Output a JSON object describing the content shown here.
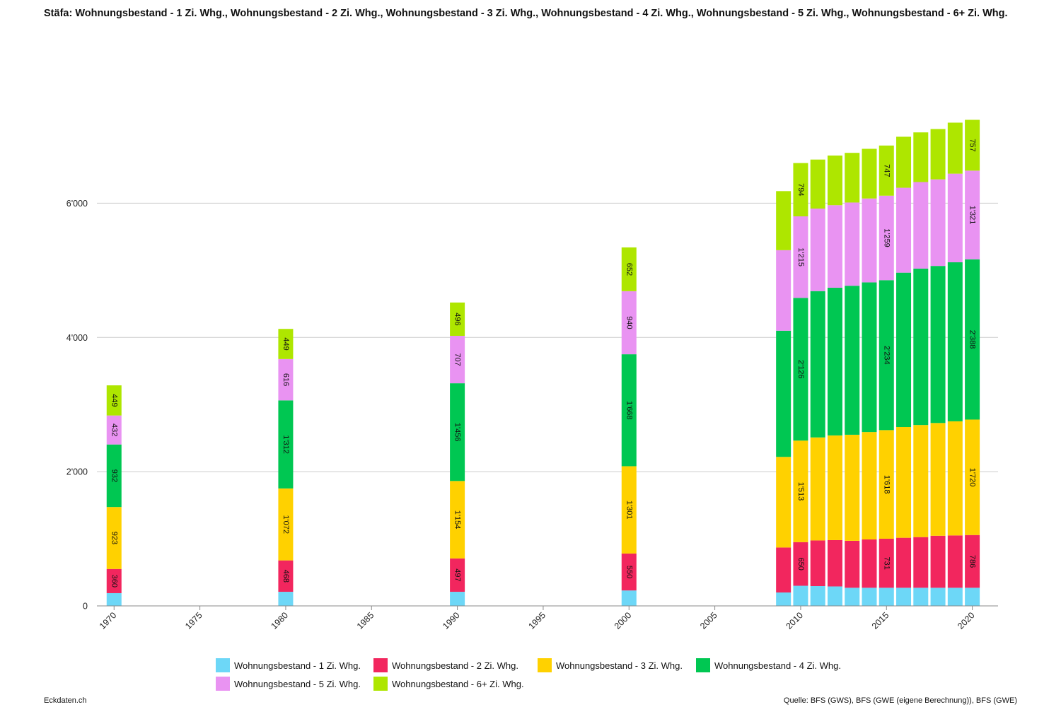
{
  "title": "Stäfa: Wohnungsbestand - 1 Zi. Whg., Wohnungsbestand - 2 Zi. Whg., Wohnungsbestand - 3 Zi. Whg., Wohnungsbestand - 4 Zi. Whg., Wohnungsbestand - 5 Zi. Whg., Wohnungsbestand - 6+ Zi. Whg.",
  "footer": {
    "left": "Eckdaten.ch",
    "right": "Quelle: BFS (GWS), BFS (GWE (eigene Berechnung)), BFS (GWE)"
  },
  "chart_data": {
    "type": "bar",
    "stacked": true,
    "x": [
      1970,
      1980,
      1990,
      2000,
      2009,
      2010,
      2011,
      2012,
      2013,
      2014,
      2015,
      2016,
      2017,
      2018,
      2019,
      2020
    ],
    "x_ticks": [
      "1970",
      "1975",
      "1980",
      "1985",
      "1990",
      "1995",
      "2000",
      "2005",
      "2010",
      "2015",
      "2020"
    ],
    "xlim": [
      1969,
      2021.5
    ],
    "ylim": [
      0,
      7500
    ],
    "y_ticks": [
      0,
      2000,
      4000,
      6000
    ],
    "y_tick_labels": [
      "0",
      "2'000",
      "4'000",
      "6'000"
    ],
    "grid": true,
    "legend_position": "bottom",
    "series": [
      {
        "name": "Wohnungsbestand - 1 Zi. Whg.",
        "color": "#6dd7f7",
        "values": [
          190,
          210,
          210,
          230,
          200,
          300,
          295,
          290,
          270,
          270,
          270,
          270,
          270,
          270,
          270,
          270
        ],
        "labels": [
          "",
          "",
          "",
          "",
          "",
          "",
          "",
          "",
          "",
          "",
          "",
          "",
          "",
          "",
          "",
          ""
        ]
      },
      {
        "name": "Wohnungsbestand - 2 Zi. Whg.",
        "color": "#f2265e",
        "values": [
          360,
          468,
          497,
          550,
          670,
          650,
          680,
          690,
          700,
          720,
          731,
          745,
          755,
          775,
          780,
          786
        ],
        "labels": [
          "360",
          "468",
          "497",
          "550",
          "",
          "650",
          "",
          "",
          "",
          "",
          "731",
          "",
          "",
          "",
          "",
          "786"
        ]
      },
      {
        "name": "Wohnungsbestand - 3 Zi. Whg.",
        "color": "#ffd100",
        "values": [
          923,
          1072,
          1154,
          1301,
          1350,
          1513,
          1535,
          1560,
          1580,
          1600,
          1618,
          1650,
          1670,
          1680,
          1700,
          1720
        ],
        "labels": [
          "923",
          "1'072",
          "1'154",
          "1'301",
          "",
          "1'513",
          "",
          "",
          "",
          "",
          "1'618",
          "",
          "",
          "",
          "",
          "1'720"
        ]
      },
      {
        "name": "Wohnungsbestand - 4 Zi. Whg.",
        "color": "#00c752",
        "values": [
          932,
          1312,
          1456,
          1668,
          1880,
          2126,
          2180,
          2200,
          2220,
          2230,
          2234,
          2300,
          2330,
          2340,
          2370,
          2388
        ],
        "labels": [
          "932",
          "1'312",
          "1'456",
          "1'668",
          "",
          "2'126",
          "",
          "",
          "",
          "",
          "2'234",
          "",
          "",
          "",
          "",
          "2'388"
        ]
      },
      {
        "name": "Wohnungsbestand - 5 Zi. Whg.",
        "color": "#e993f2",
        "values": [
          432,
          616,
          707,
          940,
          1200,
          1215,
          1230,
          1230,
          1240,
          1250,
          1259,
          1265,
          1290,
          1290,
          1320,
          1321
        ],
        "labels": [
          "432",
          "616",
          "707",
          "940",
          "",
          "1'215",
          "",
          "",
          "",
          "",
          "1'259",
          "",
          "",
          "",
          "",
          "1'321"
        ]
      },
      {
        "name": "Wohnungsbestand - 6+ Zi. Whg.",
        "color": "#aee600",
        "values": [
          449,
          449,
          496,
          652,
          880,
          794,
          730,
          740,
          740,
          740,
          747,
          760,
          740,
          750,
          760,
          757
        ],
        "labels": [
          "449",
          "449",
          "496",
          "652",
          "",
          "794",
          "",
          "",
          "",
          "",
          "747",
          "",
          "",
          "",
          "",
          "757"
        ]
      }
    ]
  }
}
